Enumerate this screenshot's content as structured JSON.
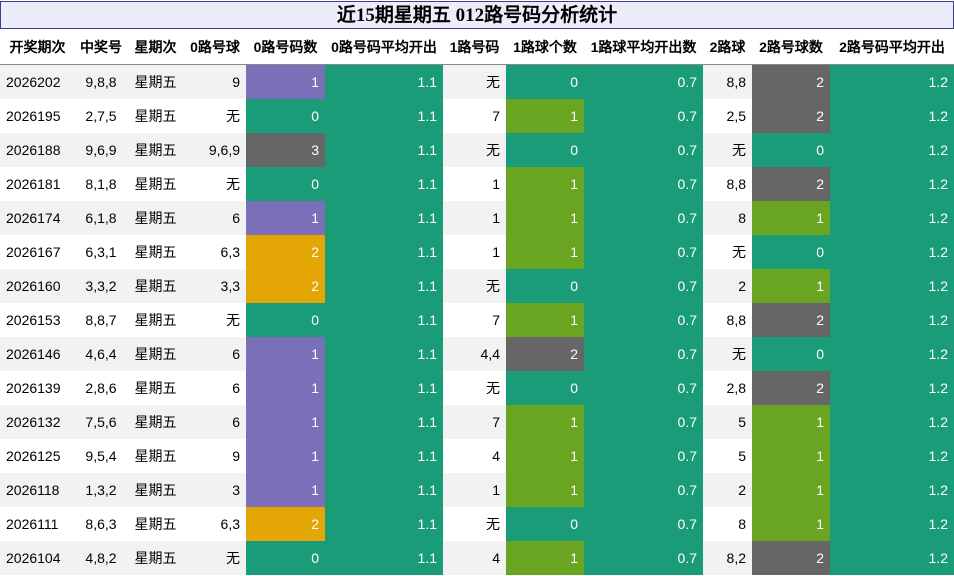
{
  "title": "近15期星期五 012路号码分析统计",
  "headers": [
    "开奖期次",
    "中奖号",
    "星期次",
    "0路号球",
    "0路号码数",
    "0路号码平均开出",
    "1路号码",
    "1路球个数",
    "1路球平均开出数",
    "2路球",
    "2路号球数",
    "2路号码平均开出"
  ],
  "colors": {
    "teal": "#1a9c78",
    "purple": "#7b70b8",
    "green": "#69a521",
    "orange": "#e4a605",
    "gray": "#666666",
    "title_bg": "#ececfb",
    "title_border": "#3d3d8a"
  },
  "rows": [
    {
      "issue": "2026202",
      "nums": "9,8,8",
      "day": "星期五",
      "r0": "9",
      "c0": "1",
      "a0": "1.1",
      "r1": "无",
      "c1": "0",
      "a1": "0.7",
      "r2": "8,8",
      "c2": "2",
      "a2": "1.2"
    },
    {
      "issue": "2026195",
      "nums": "2,7,5",
      "day": "星期五",
      "r0": "无",
      "c0": "0",
      "a0": "1.1",
      "r1": "7",
      "c1": "1",
      "a1": "0.7",
      "r2": "2,5",
      "c2": "2",
      "a2": "1.2"
    },
    {
      "issue": "2026188",
      "nums": "9,6,9",
      "day": "星期五",
      "r0": "9,6,9",
      "c0": "3",
      "a0": "1.1",
      "r1": "无",
      "c1": "0",
      "a1": "0.7",
      "r2": "无",
      "c2": "0",
      "a2": "1.2"
    },
    {
      "issue": "2026181",
      "nums": "8,1,8",
      "day": "星期五",
      "r0": "无",
      "c0": "0",
      "a0": "1.1",
      "r1": "1",
      "c1": "1",
      "a1": "0.7",
      "r2": "8,8",
      "c2": "2",
      "a2": "1.2"
    },
    {
      "issue": "2026174",
      "nums": "6,1,8",
      "day": "星期五",
      "r0": "6",
      "c0": "1",
      "a0": "1.1",
      "r1": "1",
      "c1": "1",
      "a1": "0.7",
      "r2": "8",
      "c2": "1",
      "a2": "1.2"
    },
    {
      "issue": "2026167",
      "nums": "6,3,1",
      "day": "星期五",
      "r0": "6,3",
      "c0": "2",
      "a0": "1.1",
      "r1": "1",
      "c1": "1",
      "a1": "0.7",
      "r2": "无",
      "c2": "0",
      "a2": "1.2"
    },
    {
      "issue": "2026160",
      "nums": "3,3,2",
      "day": "星期五",
      "r0": "3,3",
      "c0": "2",
      "a0": "1.1",
      "r1": "无",
      "c1": "0",
      "a1": "0.7",
      "r2": "2",
      "c2": "1",
      "a2": "1.2"
    },
    {
      "issue": "2026153",
      "nums": "8,8,7",
      "day": "星期五",
      "r0": "无",
      "c0": "0",
      "a0": "1.1",
      "r1": "7",
      "c1": "1",
      "a1": "0.7",
      "r2": "8,8",
      "c2": "2",
      "a2": "1.2"
    },
    {
      "issue": "2026146",
      "nums": "4,6,4",
      "day": "星期五",
      "r0": "6",
      "c0": "1",
      "a0": "1.1",
      "r1": "4,4",
      "c1": "2",
      "a1": "0.7",
      "r2": "无",
      "c2": "0",
      "a2": "1.2"
    },
    {
      "issue": "2026139",
      "nums": "2,8,6",
      "day": "星期五",
      "r0": "6",
      "c0": "1",
      "a0": "1.1",
      "r1": "无",
      "c1": "0",
      "a1": "0.7",
      "r2": "2,8",
      "c2": "2",
      "a2": "1.2"
    },
    {
      "issue": "2026132",
      "nums": "7,5,6",
      "day": "星期五",
      "r0": "6",
      "c0": "1",
      "a0": "1.1",
      "r1": "7",
      "c1": "1",
      "a1": "0.7",
      "r2": "5",
      "c2": "1",
      "a2": "1.2"
    },
    {
      "issue": "2026125",
      "nums": "9,5,4",
      "day": "星期五",
      "r0": "9",
      "c0": "1",
      "a0": "1.1",
      "r1": "4",
      "c1": "1",
      "a1": "0.7",
      "r2": "5",
      "c2": "1",
      "a2": "1.2"
    },
    {
      "issue": "2026118",
      "nums": "1,3,2",
      "day": "星期五",
      "r0": "3",
      "c0": "1",
      "a0": "1.1",
      "r1": "1",
      "c1": "1",
      "a1": "0.7",
      "r2": "2",
      "c2": "1",
      "a2": "1.2"
    },
    {
      "issue": "2026111",
      "nums": "8,6,3",
      "day": "星期五",
      "r0": "6,3",
      "c0": "2",
      "a0": "1.1",
      "r1": "无",
      "c1": "0",
      "a1": "0.7",
      "r2": "8",
      "c2": "1",
      "a2": "1.2"
    },
    {
      "issue": "2026104",
      "nums": "4,8,2",
      "day": "星期五",
      "r0": "无",
      "c0": "0",
      "a0": "1.1",
      "r1": "4",
      "c1": "1",
      "a1": "0.7",
      "r2": "8,2",
      "c2": "2",
      "a2": "1.2"
    }
  ]
}
